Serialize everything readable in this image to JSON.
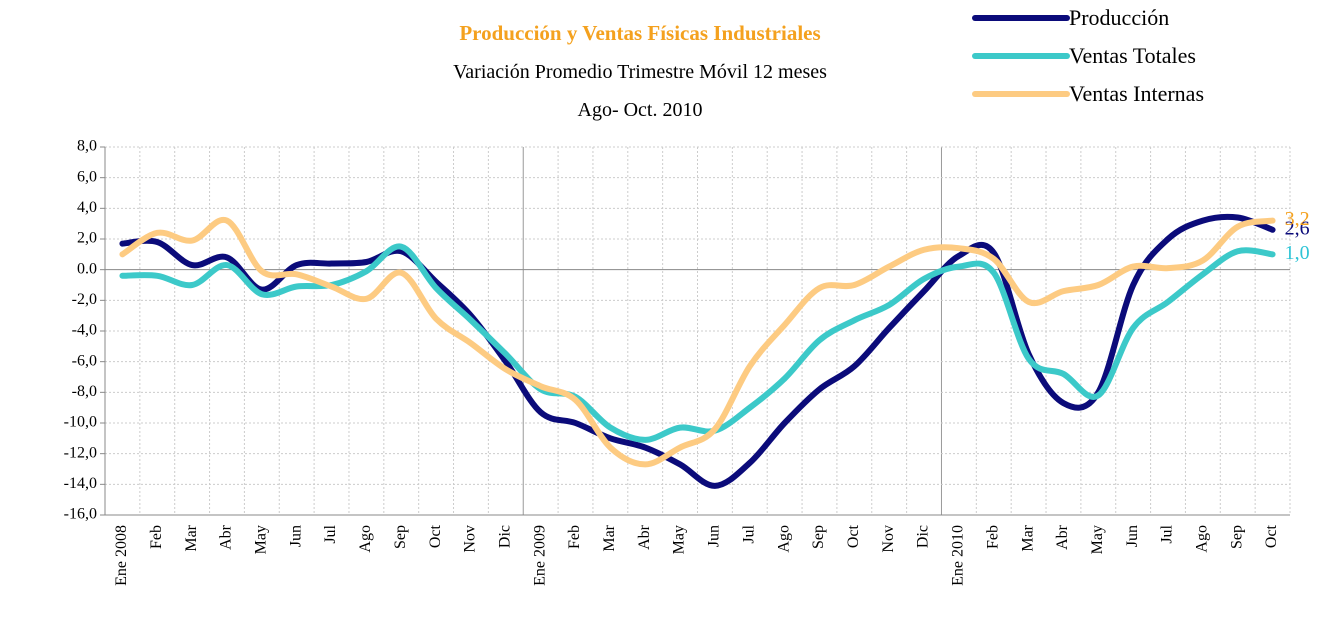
{
  "chart_data": {
    "type": "line",
    "title": "Producción y Ventas Físicas Industriales",
    "subtitle": "Variación Promedio Trimestre Móvil 12 meses",
    "period": "Ago- Oct. 2010",
    "categories": [
      "Ene 2008",
      "Feb",
      "Mar",
      "Abr",
      "May",
      "Jun",
      "Jul",
      "Ago",
      "Sep",
      "Oct",
      "Nov",
      "Dic",
      "Ene 2009",
      "Feb",
      "Mar",
      "Abr",
      "May",
      "Jun",
      "Jul",
      "Ago",
      "Sep",
      "Oct",
      "Nov",
      "Dic",
      "Ene 2010",
      "Feb",
      "Mar",
      "Abr",
      "May",
      "Jun",
      "Jul",
      "Ago",
      "Sep",
      "Oct"
    ],
    "series": [
      {
        "name": "Producción",
        "color": "#0b0b7a",
        "values": [
          1.7,
          1.8,
          0.3,
          0.8,
          -1.3,
          0.3,
          0.4,
          0.5,
          1.2,
          -0.8,
          -3.0,
          -6.0,
          -9.3,
          -10.0,
          -11.0,
          -11.6,
          -12.7,
          -14.1,
          -12.6,
          -10.0,
          -7.8,
          -6.3,
          -3.8,
          -1.4,
          0.9,
          1.1,
          -5.5,
          -8.7,
          -8.0,
          -1.0,
          2.0,
          3.2,
          3.4,
          2.6
        ],
        "value_labels": [
          null,
          null,
          null,
          null,
          null,
          null,
          null,
          null,
          null,
          null,
          null,
          null,
          null,
          null,
          null,
          null,
          null,
          null,
          null,
          null,
          null,
          null,
          null,
          null,
          null,
          null,
          null,
          null,
          null,
          null,
          null,
          null,
          null,
          "2,6"
        ],
        "label_color": "#0b0b7a"
      },
      {
        "name": "Ventas Totales",
        "color": "#3cc9c9",
        "values": [
          -0.4,
          -0.4,
          -1.0,
          0.3,
          -1.6,
          -1.1,
          -1.0,
          -0.1,
          1.5,
          -1.2,
          -3.3,
          -5.5,
          -7.8,
          -8.3,
          -10.3,
          -11.1,
          -10.3,
          -10.5,
          -9.0,
          -7.1,
          -4.6,
          -3.3,
          -2.3,
          -0.6,
          0.2,
          -0.2,
          -5.8,
          -6.8,
          -8.2,
          -3.8,
          -2.1,
          -0.3,
          1.2,
          1.0
        ],
        "value_labels": [
          null,
          null,
          null,
          null,
          null,
          null,
          null,
          null,
          null,
          null,
          null,
          null,
          null,
          null,
          null,
          null,
          null,
          null,
          null,
          null,
          null,
          null,
          null,
          null,
          null,
          null,
          null,
          null,
          null,
          null,
          null,
          null,
          null,
          "1,0"
        ],
        "label_color": "#2ec4d6"
      },
      {
        "name": "Ventas Internas",
        "color": "#fdcb82",
        "values": [
          1.0,
          2.4,
          1.9,
          3.2,
          -0.1,
          -0.3,
          -1.1,
          -1.9,
          -0.2,
          -3.2,
          -4.8,
          -6.5,
          -7.6,
          -8.5,
          -11.6,
          -12.7,
          -11.6,
          -10.4,
          -6.3,
          -3.6,
          -1.2,
          -1.0,
          0.2,
          1.3,
          1.4,
          0.7,
          -2.1,
          -1.4,
          -1.0,
          0.2,
          0.1,
          0.6,
          2.8,
          3.2
        ],
        "value_labels": [
          null,
          null,
          null,
          null,
          null,
          null,
          null,
          null,
          null,
          null,
          null,
          null,
          null,
          null,
          null,
          null,
          null,
          null,
          null,
          null,
          null,
          null,
          null,
          null,
          null,
          null,
          null,
          null,
          null,
          null,
          null,
          null,
          null,
          "3,2"
        ],
        "label_color": "#f4a11e"
      }
    ],
    "title_color": "#f4a11e",
    "ylim": [
      -16,
      8
    ],
    "yticks": [
      {
        "value": -16,
        "label": "-16,0"
      },
      {
        "value": -14,
        "label": "-14,0"
      },
      {
        "value": -12,
        "label": "-12,0"
      },
      {
        "value": -10,
        "label": "-10,0"
      },
      {
        "value": -8,
        "label": "-8,0"
      },
      {
        "value": -6,
        "label": "-6,0"
      },
      {
        "value": -4,
        "label": "-4,0"
      },
      {
        "value": -2,
        "label": "-2,0"
      },
      {
        "value": 0,
        "label": "0.0"
      },
      {
        "value": 2,
        "label": "2,0"
      },
      {
        "value": 4,
        "label": "4,0"
      },
      {
        "value": 6,
        "label": "6,0"
      },
      {
        "value": 8,
        "label": "8,0"
      }
    ],
    "grid": true,
    "legend": "top-right"
  }
}
